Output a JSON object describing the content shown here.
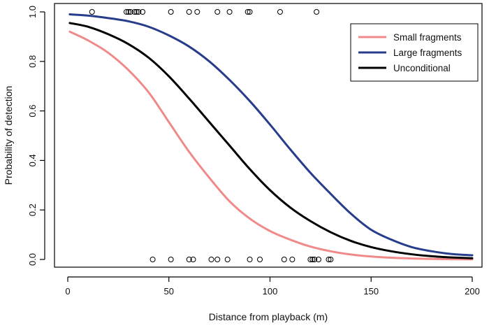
{
  "chart_data": {
    "type": "line",
    "title": "",
    "xlabel": "Distance from playback (m)",
    "ylabel": "Probability of detection",
    "xlim": [
      0,
      200
    ],
    "ylim": [
      0,
      1
    ],
    "x_ticks": [
      0,
      50,
      100,
      150,
      200
    ],
    "y_ticks": [
      "0.0",
      "0.2",
      "0.4",
      "0.6",
      "0.8",
      "1.0"
    ],
    "grid": false,
    "legend_position": "top-right",
    "series": [
      {
        "name": "Small fragments",
        "color": "#f08a8a",
        "x": [
          1,
          10,
          20,
          30,
          40,
          50,
          60,
          70,
          80,
          90,
          100,
          110,
          120,
          130,
          140,
          150,
          160,
          170,
          180,
          190,
          200
        ],
        "y": [
          0.92,
          0.885,
          0.835,
          0.765,
          0.675,
          0.555,
          0.435,
          0.33,
          0.235,
          0.165,
          0.115,
          0.08,
          0.052,
          0.033,
          0.02,
          0.012,
          0.007,
          0.004,
          0.002,
          0.001,
          0.0005
        ]
      },
      {
        "name": "Large fragments",
        "color": "#283c8c",
        "x": [
          1,
          10,
          20,
          30,
          40,
          50,
          60,
          70,
          80,
          90,
          100,
          110,
          120,
          130,
          140,
          150,
          160,
          170,
          180,
          190,
          200
        ],
        "y": [
          0.99,
          0.985,
          0.975,
          0.962,
          0.94,
          0.905,
          0.86,
          0.8,
          0.725,
          0.64,
          0.545,
          0.445,
          0.35,
          0.265,
          0.185,
          0.12,
          0.08,
          0.05,
          0.033,
          0.022,
          0.017
        ]
      },
      {
        "name": "Unconditional",
        "color": "#000000",
        "x": [
          1,
          10,
          20,
          30,
          40,
          50,
          60,
          70,
          80,
          90,
          100,
          110,
          120,
          130,
          140,
          150,
          160,
          170,
          180,
          190,
          200
        ],
        "y": [
          0.955,
          0.94,
          0.91,
          0.87,
          0.815,
          0.74,
          0.65,
          0.555,
          0.46,
          0.365,
          0.28,
          0.21,
          0.155,
          0.11,
          0.075,
          0.05,
          0.033,
          0.021,
          0.013,
          0.008,
          0.005
        ]
      }
    ],
    "observations": {
      "detected": {
        "y": 1,
        "x": [
          12,
          29,
          30,
          31,
          33,
          34,
          35,
          37,
          51,
          60,
          64,
          74,
          80,
          89,
          90,
          105,
          123
        ]
      },
      "not_detected": {
        "y": 0,
        "x": [
          42,
          51,
          60,
          62,
          71,
          74,
          79,
          90,
          95,
          107,
          111,
          120,
          121,
          122,
          124,
          129,
          130
        ]
      }
    }
  }
}
